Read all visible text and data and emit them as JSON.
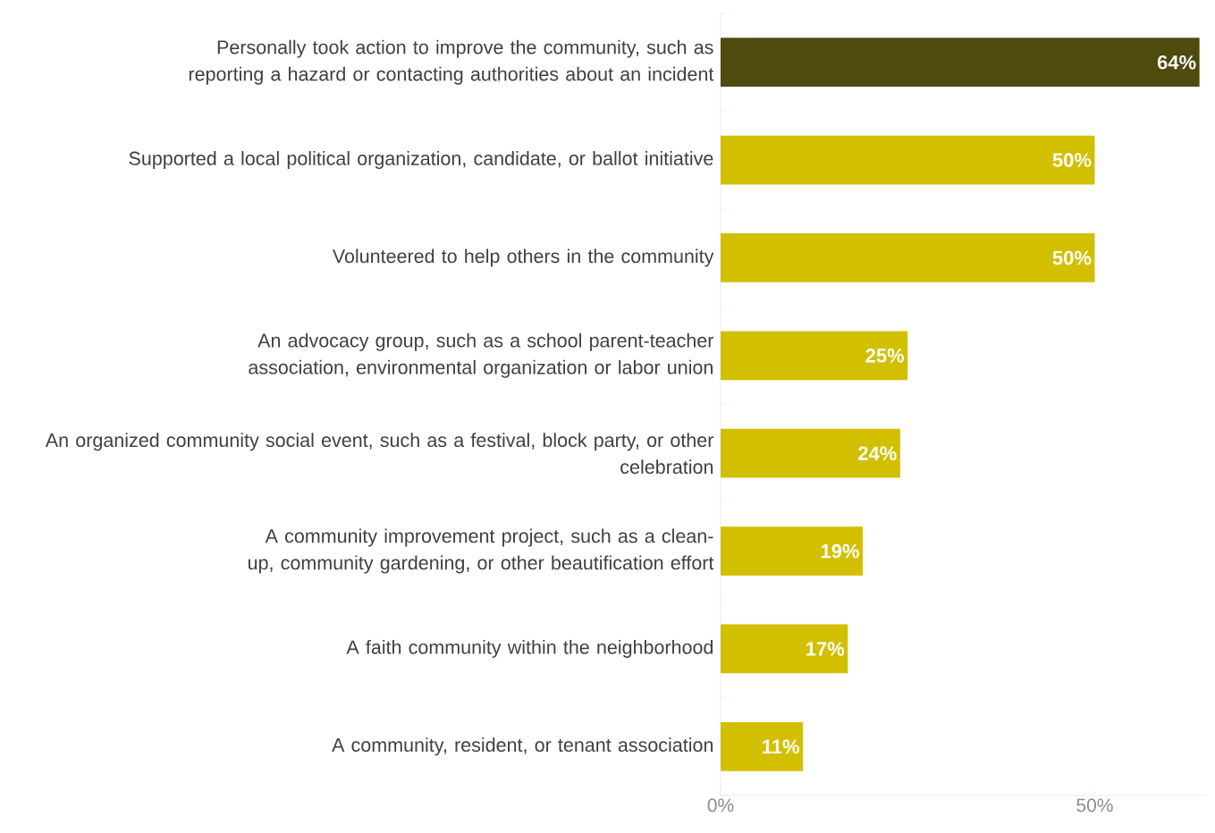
{
  "chart_data": {
    "type": "bar",
    "orientation": "horizontal",
    "categories": [
      "Personally took action to improve the community, such as reporting a hazard or contacting authorities about an incident",
      "Supported a local political organization, candidate, or ballot initiative",
      "Volunteered to help others in the community",
      "An advocacy group, such as a school parent-teacher association, environmental organization or labor union",
      "An organized community social event, such as a festival, block party, or other celebration",
      "A community improvement project, such as a clean-up, community gardening, or other beautification effort",
      "A faith community within the neighborhood",
      "A community, resident, or tenant association"
    ],
    "values": [
      64,
      50,
      50,
      25,
      24,
      19,
      17,
      11
    ],
    "colors": [
      "#4f4a0e",
      "#d2c000",
      "#d2c000",
      "#d2c000",
      "#d2c000",
      "#d2c000",
      "#d2c000",
      "#d2c000"
    ],
    "value_labels": [
      "64%",
      "50%",
      "50%",
      "25%",
      "24%",
      "19%",
      "17%",
      "11%"
    ],
    "xlim": [
      0,
      65
    ],
    "xticks": [
      {
        "value": 0,
        "label": "0%"
      },
      {
        "value": 50,
        "label": "50%"
      }
    ]
  }
}
